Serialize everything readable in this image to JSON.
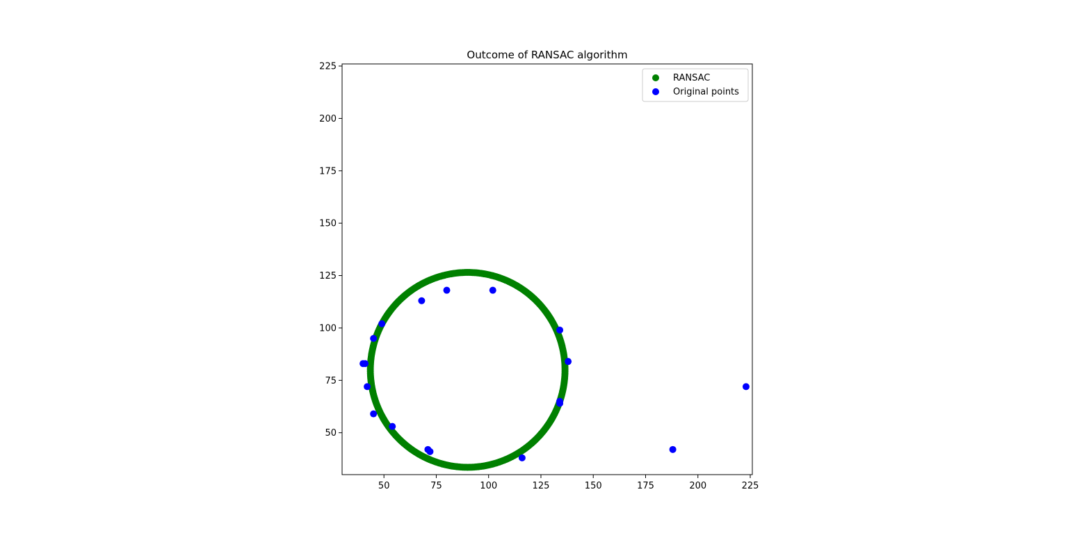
{
  "chart_data": {
    "type": "scatter",
    "title": "Outcome of RANSAC algorithm",
    "xlabel": "",
    "ylabel": "",
    "xlim": [
      30,
      226
    ],
    "ylim": [
      30,
      226
    ],
    "xticks": [
      50,
      75,
      100,
      125,
      150,
      175,
      200,
      225
    ],
    "yticks": [
      50,
      75,
      100,
      125,
      150,
      175,
      200,
      225
    ],
    "grid": false,
    "legend_position": "top-right",
    "series": [
      {
        "name": "RANSAC",
        "color": "#008000",
        "kind": "circle-fit",
        "center": [
          90,
          80
        ],
        "radius": 46.5,
        "sample_count": 360
      },
      {
        "name": "Original points",
        "color": "#0000ff",
        "points": [
          [
            40,
            83
          ],
          [
            41,
            83
          ],
          [
            42,
            72
          ],
          [
            45,
            95
          ],
          [
            45,
            59
          ],
          [
            49,
            102
          ],
          [
            54,
            53
          ],
          [
            68,
            113
          ],
          [
            71,
            42
          ],
          [
            72,
            41
          ],
          [
            80,
            118
          ],
          [
            102,
            118
          ],
          [
            116,
            38
          ],
          [
            134,
            99
          ],
          [
            134,
            65
          ],
          [
            134,
            64
          ],
          [
            138,
            84
          ],
          [
            188,
            42
          ],
          [
            223,
            72
          ]
        ]
      }
    ]
  }
}
